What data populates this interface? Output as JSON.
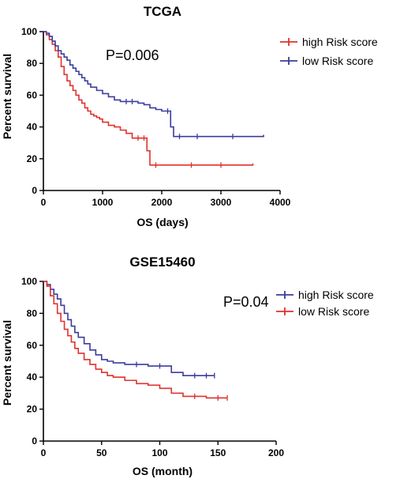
{
  "chart_data": [
    {
      "type": "line",
      "title": "TCGA",
      "xlabel": "OS (days)",
      "ylabel": "Percent survival",
      "xlim": [
        0,
        4000
      ],
      "ylim": [
        0,
        100
      ],
      "xticks": [
        "0",
        "1000",
        "2000",
        "3000",
        "4000"
      ],
      "yticks": [
        "0",
        "20",
        "40",
        "60",
        "80",
        "100"
      ],
      "annotation": "P=0.006",
      "grid": false,
      "legend_position": "top-right",
      "series": [
        {
          "name": "high Risk score",
          "color": "#e0312f",
          "x": [
            0,
            50,
            100,
            150,
            200,
            250,
            300,
            350,
            400,
            450,
            500,
            550,
            600,
            650,
            700,
            750,
            800,
            850,
            900,
            950,
            1000,
            1100,
            1200,
            1300,
            1400,
            1500,
            1600,
            1700,
            1750,
            1800,
            1900,
            2500,
            3000,
            3540
          ],
          "y": [
            100,
            98,
            95,
            92,
            88,
            84,
            78,
            73,
            69,
            66,
            63,
            60,
            57,
            55,
            52,
            50,
            48,
            47,
            46,
            45,
            43,
            41,
            40,
            38,
            36,
            33,
            33,
            33,
            25,
            16,
            16,
            16,
            16,
            17
          ]
        },
        {
          "name": "low Risk score",
          "color": "#3c3c9e",
          "x": [
            0,
            50,
            100,
            150,
            200,
            250,
            300,
            350,
            400,
            450,
            500,
            550,
            600,
            650,
            700,
            750,
            800,
            900,
            1000,
            1100,
            1200,
            1300,
            1400,
            1500,
            1600,
            1700,
            1800,
            1900,
            2000,
            2100,
            2150,
            2200,
            2300,
            2600,
            3200,
            3720
          ],
          "y": [
            100,
            99,
            97,
            94,
            91,
            88,
            86,
            84,
            82,
            79,
            77,
            75,
            73,
            71,
            69,
            67,
            65,
            63,
            61,
            59,
            57,
            56,
            56,
            56,
            55,
            54,
            52,
            51,
            50,
            50,
            40,
            34,
            34,
            34,
            34,
            35
          ]
        }
      ]
    },
    {
      "type": "line",
      "title": "GSE15460",
      "xlabel": "OS (month)",
      "ylabel": "Percent survival",
      "xlim": [
        0,
        200
      ],
      "ylim": [
        0,
        100
      ],
      "xticks": [
        "0",
        "50",
        "100",
        "150",
        "200"
      ],
      "yticks": [
        "0",
        "20",
        "40",
        "60",
        "80",
        "100"
      ],
      "annotation": "P=0.04",
      "grid": false,
      "legend_position": "top-right",
      "series": [
        {
          "name": "high Risk score",
          "color": "#3c3c9e",
          "x": [
            0,
            3,
            6,
            9,
            12,
            15,
            18,
            21,
            24,
            27,
            30,
            35,
            40,
            45,
            50,
            55,
            60,
            70,
            80,
            90,
            100,
            110,
            120,
            130,
            140,
            147
          ],
          "y": [
            100,
            98,
            95,
            92,
            89,
            85,
            80,
            76,
            72,
            68,
            65,
            61,
            57,
            54,
            51,
            50,
            49,
            48,
            48,
            47,
            47,
            43,
            41,
            41,
            41,
            41
          ]
        },
        {
          "name": "low Risk score",
          "color": "#e0312f",
          "x": [
            0,
            3,
            6,
            9,
            12,
            15,
            18,
            21,
            24,
            27,
            30,
            35,
            40,
            45,
            50,
            55,
            60,
            70,
            80,
            90,
            100,
            110,
            120,
            130,
            140,
            150,
            158
          ],
          "y": [
            100,
            97,
            91,
            86,
            80,
            75,
            70,
            66,
            62,
            58,
            55,
            51,
            48,
            45,
            43,
            41,
            40,
            38,
            36,
            35,
            33,
            30,
            28,
            28,
            27,
            27,
            27
          ]
        }
      ]
    }
  ]
}
